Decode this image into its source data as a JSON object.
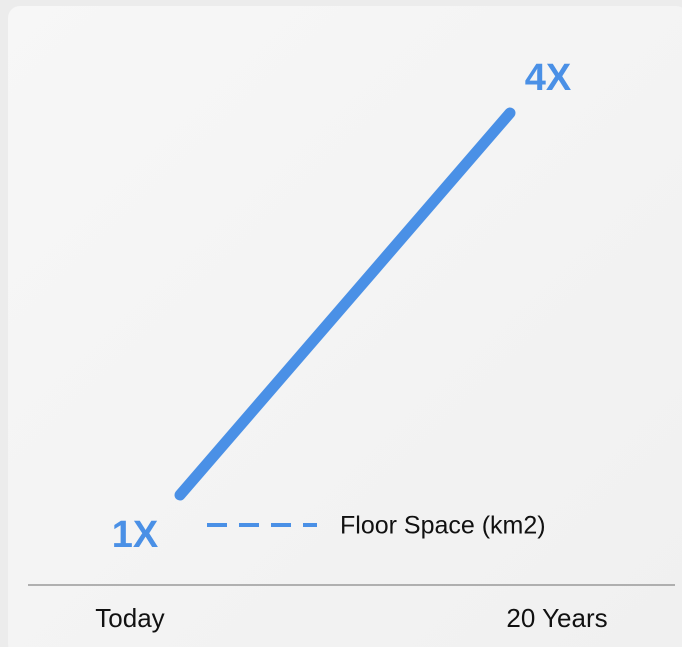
{
  "chart_data": {
    "type": "line",
    "categories": [
      "Today",
      "20 Years"
    ],
    "series": [
      {
        "name": "Floor Space (km2)",
        "color": "#4a90e6",
        "values": [
          1,
          4
        ],
        "value_labels": [
          "1X",
          "4X"
        ]
      }
    ],
    "ylim": [
      1,
      4
    ]
  }
}
